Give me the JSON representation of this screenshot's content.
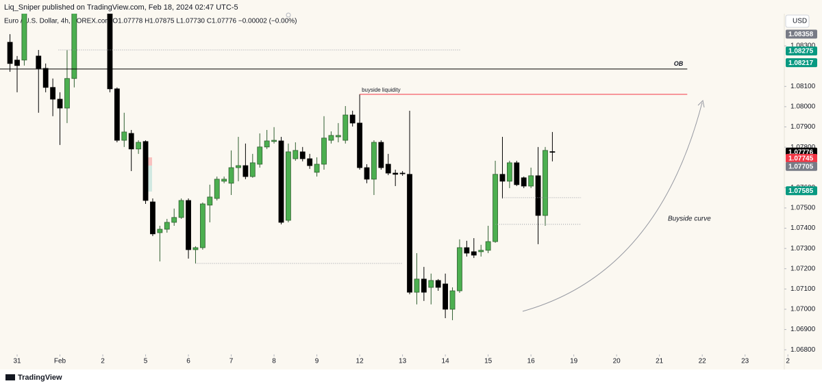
{
  "chart_data": {
    "type": "candlestick",
    "header": "Liq_Sniper published on TradingView.com, Feb 18, 2024 02:47 UTC-5",
    "legend": "Euro / U.S. Dollar, 4h, FOREX.com  O1.07778 H1.07875 L1.07730 C1.07776 −0.00002 (−0.00%)",
    "currency": "USD",
    "footer": "TradingView",
    "curve_label": "Buyside curve",
    "up_color": "#4caf50",
    "down_color": "#000000",
    "x": [
      -1,
      0,
      1,
      3,
      4,
      5,
      6,
      7,
      8,
      13,
      14,
      15,
      16,
      17,
      18,
      19,
      20,
      21,
      22,
      23,
      24,
      25,
      26,
      27,
      28,
      29,
      30,
      31,
      32,
      33,
      34,
      35,
      36,
      37,
      38,
      39,
      40,
      41,
      42,
      43,
      44,
      45,
      46,
      47,
      48,
      49,
      50,
      51,
      52,
      53,
      54,
      55,
      56,
      57,
      58,
      59,
      60,
      61,
      62,
      63,
      64,
      65,
      66,
      67,
      68,
      69,
      70,
      71,
      72,
      73,
      74,
      75
    ],
    "open": [
      1.08318,
      1.0823,
      1.0823,
      1.0825,
      1.08189,
      1.08095,
      1.08037,
      1.07993,
      1.08139,
      1.085,
      1.08088,
      1.07834,
      1.07868,
      1.07791,
      1.07828,
      1.0753,
      1.07378,
      1.07395,
      1.07429,
      1.07453,
      1.07537,
      1.07294,
      1.07304,
      1.07514,
      1.07547,
      1.07632,
      1.07622,
      1.07699,
      1.07709,
      1.07655,
      1.07716,
      1.07801,
      1.07828,
      1.07831,
      1.07439,
      1.07743,
      1.07777,
      1.07743,
      1.07676,
      1.07716,
      1.07834,
      1.07851,
      1.07834,
      1.07959,
      1.07919,
      1.07699,
      1.07642,
      1.07824,
      1.07716,
      1.07672,
      1.07672,
      1.07666,
      1.07084,
      1.07149,
      1.07108,
      1.07142,
      1.07125,
      1.07,
      1.07091,
      1.07304,
      1.07284,
      1.07284,
      1.07291,
      1.07334,
      1.07666,
      1.07632,
      1.07723,
      1.07649,
      1.07608,
      1.07659,
      1.07463,
      1.07778
    ],
    "high": [
      1.08358,
      1.0825,
      1.0855,
      1.0828,
      1.08213,
      1.08139,
      1.08071,
      1.0828,
      1.0855,
      1.0855,
      1.08095,
      1.0797,
      1.07885,
      1.07834,
      1.07834,
      1.07547,
      1.07412,
      1.07446,
      1.07497,
      1.07547,
      1.07547,
      1.07311,
      1.07527,
      1.07615,
      1.07655,
      1.07655,
      1.07784,
      1.07851,
      1.07818,
      1.07767,
      1.07868,
      1.07885,
      1.07899,
      1.07851,
      1.07818,
      1.07824,
      1.07801,
      1.07767,
      1.0775,
      1.07953,
      1.07878,
      1.07919,
      1.08003,
      1.0798,
      1.08061,
      1.07716,
      1.07834,
      1.07834,
      1.07767,
      1.07689,
      1.07682,
      1.0798,
      1.07277,
      1.07209,
      1.07176,
      1.07149,
      1.07176,
      1.07108,
      1.07345,
      1.07338,
      1.07351,
      1.07318,
      1.07412,
      1.07733,
      1.07851,
      1.07733,
      1.07733,
      1.07655,
      1.07699,
      1.07801,
      1.07801,
      1.07875
    ],
    "low": [
      1.08172,
      1.08071,
      1.08203,
      1.0797,
      1.08071,
      1.07953,
      1.07811,
      1.07919,
      1.08095,
      1.08071,
      1.07824,
      1.07801,
      1.07682,
      1.07767,
      1.0752,
      1.07361,
      1.07236,
      1.07378,
      1.07412,
      1.07446,
      1.0725,
      1.07226,
      1.07294,
      1.07429,
      1.07537,
      1.07622,
      1.07564,
      1.07632,
      1.07642,
      1.07649,
      1.07699,
      1.07791,
      1.07818,
      1.07419,
      1.07429,
      1.07733,
      1.0773,
      1.07693,
      1.07655,
      1.07689,
      1.07818,
      1.07824,
      1.07818,
      1.07902,
      1.07689,
      1.07622,
      1.07564,
      1.07689,
      1.07662,
      1.07608,
      1.07659,
      1.07074,
      1.07024,
      1.07041,
      1.07024,
      1.07091,
      1.06956,
      1.06946,
      1.07081,
      1.0726,
      1.07253,
      1.0726,
      1.07277,
      1.07328,
      1.07547,
      1.07598,
      1.07608,
      1.07598,
      1.07598,
      1.07321,
      1.07412,
      1.0773
    ],
    "close": [
      1.08213,
      1.08203,
      1.085,
      1.08189,
      1.08095,
      1.08037,
      1.07993,
      1.08139,
      1.085,
      1.08088,
      1.07834,
      1.07875,
      1.07791,
      1.07824,
      1.07537,
      1.07372,
      1.07395,
      1.07429,
      1.07453,
      1.07537,
      1.07294,
      1.07304,
      1.0752,
      1.07554,
      1.07642,
      1.07642,
      1.07699,
      1.07709,
      1.07655,
      1.07723,
      1.07801,
      1.07831,
      1.07834,
      1.07429,
      1.07777,
      1.07784,
      1.07743,
      1.07709,
      1.07716,
      1.07845,
      1.07858,
      1.07858,
      1.07959,
      1.07919,
      1.07699,
      1.07642,
      1.07824,
      1.07699,
      1.07672,
      1.07666,
      1.07669,
      1.07084,
      1.07149,
      1.07084,
      1.07142,
      1.07108,
      1.07,
      1.07091,
      1.07304,
      1.07277,
      1.07267,
      1.07291,
      1.07334,
      1.07666,
      1.07632,
      1.07723,
      1.07615,
      1.07608,
      1.07659,
      1.07463,
      1.07784,
      1.07776
    ],
    "xlim": [
      -2.4,
      107.5
    ],
    "xticks": [
      {
        "value": 0,
        "label": "31"
      },
      {
        "value": 6,
        "label": "Feb"
      },
      {
        "value": 12,
        "label": "2"
      },
      {
        "value": 18,
        "label": "5"
      },
      {
        "value": 24,
        "label": "6"
      },
      {
        "value": 30,
        "label": "7"
      },
      {
        "value": 36,
        "label": "8"
      },
      {
        "value": 42,
        "label": "9"
      },
      {
        "value": 48,
        "label": "12"
      },
      {
        "value": 54,
        "label": "13"
      },
      {
        "value": 60,
        "label": "14"
      },
      {
        "value": 66,
        "label": "15"
      },
      {
        "value": 72,
        "label": "16"
      },
      {
        "value": 78,
        "label": "19"
      },
      {
        "value": 84,
        "label": "20"
      },
      {
        "value": 90,
        "label": "21"
      },
      {
        "value": 96,
        "label": "22"
      },
      {
        "value": 102,
        "label": "23"
      },
      {
        "value": 108,
        "label": "2"
      }
    ],
    "ylim": [
      1.06777,
      1.08459
    ],
    "yticks": [
      {
        "value": 1.083,
        "label": "1.08300"
      },
      {
        "value": 1.081,
        "label": "1.08100"
      },
      {
        "value": 1.08,
        "label": "1.08000"
      },
      {
        "value": 1.079,
        "label": "1.07900"
      },
      {
        "value": 1.078,
        "label": "1.07800"
      },
      {
        "value": 1.076,
        "label": "1.07600"
      },
      {
        "value": 1.075,
        "label": "1.07500"
      },
      {
        "value": 1.074,
        "label": "1.07400"
      },
      {
        "value": 1.073,
        "label": "1.07300"
      },
      {
        "value": 1.072,
        "label": "1.07200"
      },
      {
        "value": 1.071,
        "label": "1.07100"
      },
      {
        "value": 1.07,
        "label": "1.07000"
      },
      {
        "value": 1.069,
        "label": "1.06900"
      },
      {
        "value": 1.068,
        "label": "1.06800"
      }
    ],
    "lines": [
      {
        "price": 1.0828,
        "from": 5.8,
        "to": 62.1,
        "style": "dotted",
        "color": "#9598a1"
      },
      {
        "price": 1.08186,
        "from": -2.4,
        "to": 93.9,
        "style": "solid",
        "color": "#000000",
        "label": "OB"
      },
      {
        "price": 1.08061,
        "from": 48,
        "to": 93.9,
        "style": "solid",
        "color": "#f23645",
        "label": "buyside liquidity"
      },
      {
        "price": 1.07226,
        "from": 25,
        "to": 54,
        "style": "dotted",
        "color": "#9598a1"
      },
      {
        "price": 1.07551,
        "from": 68,
        "to": 79,
        "style": "dotted",
        "color": "#9598a1"
      },
      {
        "price": 1.07419,
        "from": 67,
        "to": 79,
        "style": "dotted",
        "color": "#9598a1"
      }
    ],
    "price_labels": [
      {
        "value": 1.08358,
        "label": "1.08358",
        "color": "#787b86"
      },
      {
        "value": 1.08275,
        "label": "1.08275",
        "color": "#089981"
      },
      {
        "value": 1.08217,
        "label": "1.08217",
        "color": "#089981"
      },
      {
        "value": 1.07776,
        "label": "1.07776",
        "color": "#000000"
      },
      {
        "value": 1.07745,
        "label": "1.07745",
        "color": "#f23645"
      },
      {
        "value": 1.07705,
        "label": "1.07705",
        "color": "#787b86"
      },
      {
        "value": 1.07585,
        "label": "1.07585",
        "color": "#089981"
      }
    ]
  }
}
